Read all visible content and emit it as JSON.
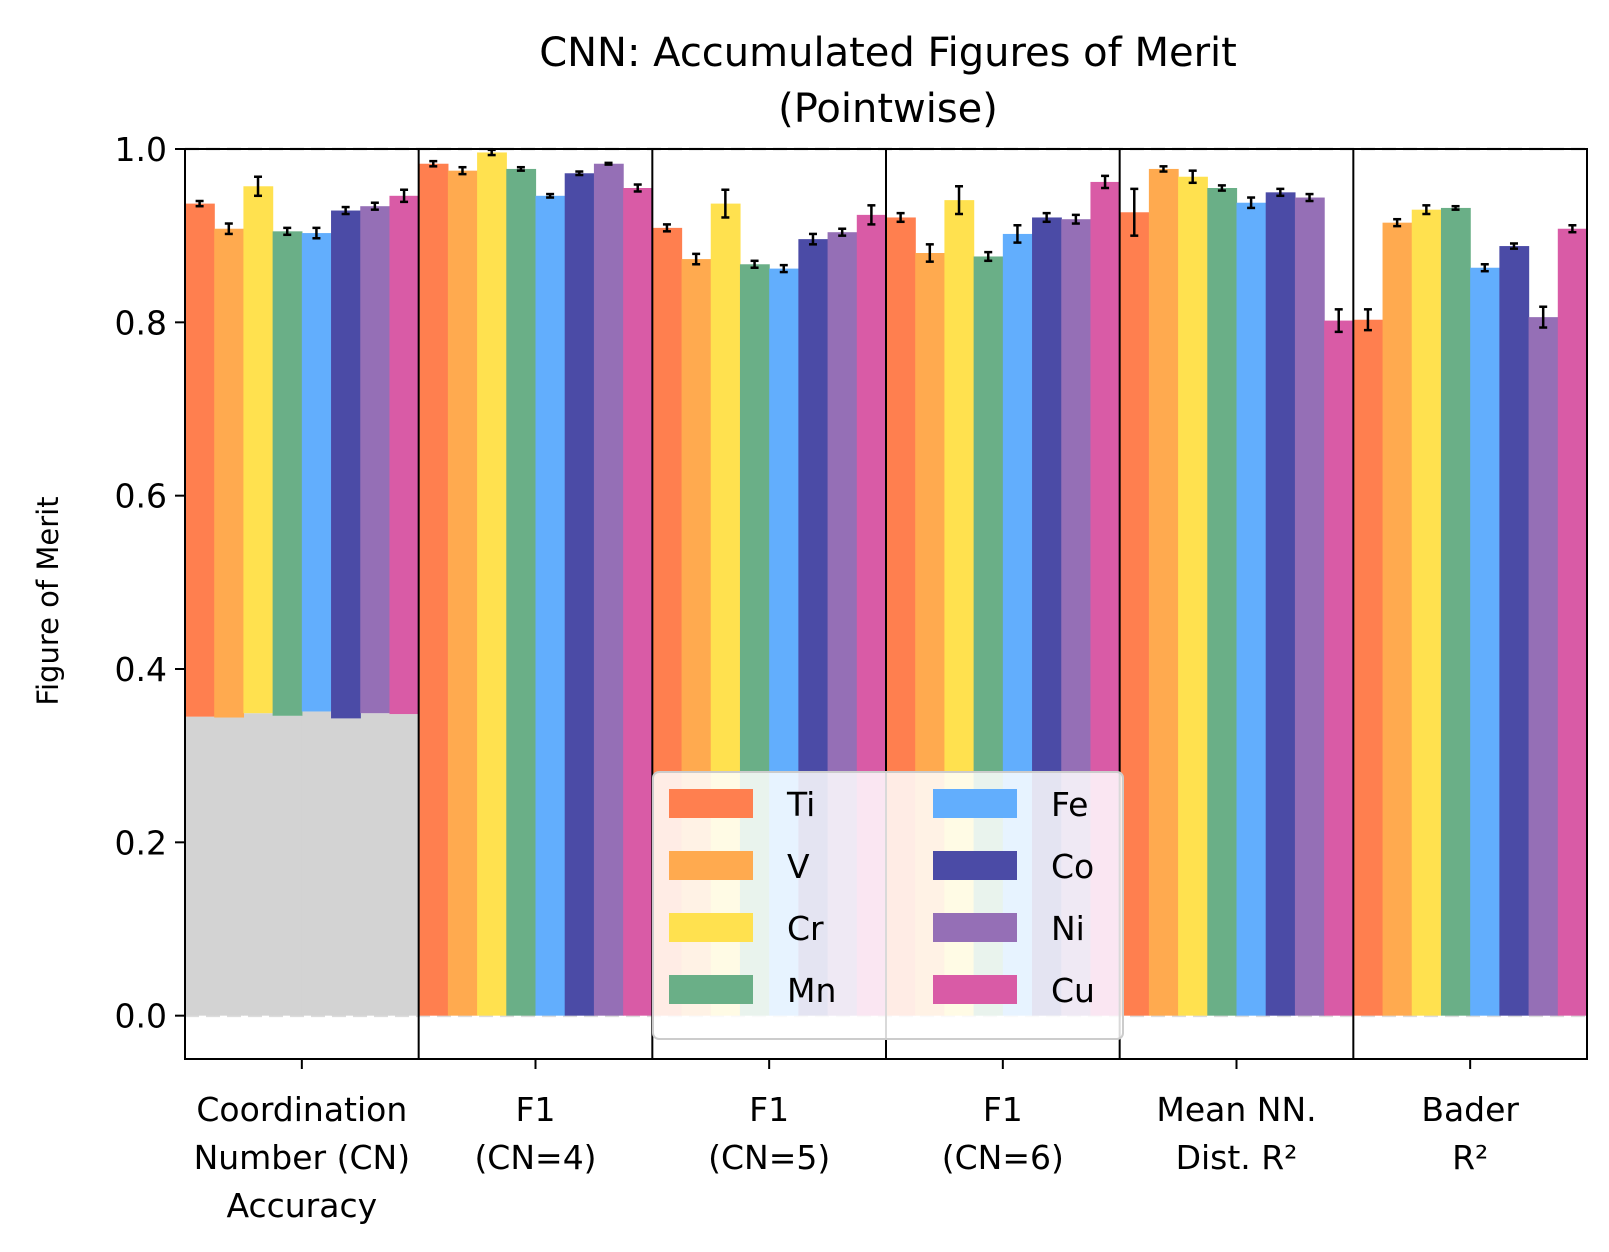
{
  "chart_data": {
    "type": "bar",
    "title": [
      "CNN: Accumulated Figures of Merit",
      "(Pointwise)"
    ],
    "ylabel": "Figure of Merit",
    "ylim": [
      -0.05,
      1.0
    ],
    "yticks": [
      "0.0",
      "0.2",
      "0.4",
      "0.6",
      "0.8",
      "1.0"
    ],
    "ytick_values": [
      0.0,
      0.2,
      0.4,
      0.6,
      0.8,
      1.0
    ],
    "grid": "horizontal dashed",
    "legend_position": "lower center",
    "categories": [
      [
        "Coordination",
        "Number (CN)",
        "Accuracy"
      ],
      [
        "F1",
        "(CN=4)"
      ],
      [
        "F1",
        "(CN=5)"
      ],
      [
        "F1",
        "(CN=6)"
      ],
      [
        "Mean NN.",
        "Dist. R²"
      ],
      [
        "Bader",
        "R²"
      ]
    ],
    "series": [
      {
        "name": "Ti",
        "color": "#ff7f4f",
        "values": [
          0.937,
          0.983,
          0.909,
          0.921,
          0.927,
          0.803
        ],
        "errors": [
          0.003,
          0.003,
          0.004,
          0.005,
          0.027,
          0.012
        ]
      },
      {
        "name": "V",
        "color": "#ffaa4f",
        "values": [
          0.908,
          0.975,
          0.873,
          0.88,
          0.977,
          0.915
        ],
        "errors": [
          0.006,
          0.004,
          0.006,
          0.01,
          0.003,
          0.004
        ]
      },
      {
        "name": "Cr",
        "color": "#ffe14f",
        "values": [
          0.957,
          0.996,
          0.937,
          0.941,
          0.968,
          0.93
        ],
        "errors": [
          0.011,
          0.003,
          0.016,
          0.016,
          0.007,
          0.005
        ]
      },
      {
        "name": "Mn",
        "color": "#6aaf87",
        "values": [
          0.905,
          0.977,
          0.867,
          0.876,
          0.955,
          0.932
        ],
        "errors": [
          0.004,
          0.002,
          0.004,
          0.005,
          0.003,
          0.002
        ]
      },
      {
        "name": "Fe",
        "color": "#62aefd",
        "values": [
          0.903,
          0.946,
          0.862,
          0.902,
          0.938,
          0.863
        ],
        "errors": [
          0.006,
          0.002,
          0.004,
          0.01,
          0.006,
          0.004
        ]
      },
      {
        "name": "Co",
        "color": "#4b4ba6",
        "values": [
          0.929,
          0.972,
          0.896,
          0.921,
          0.95,
          0.888
        ],
        "errors": [
          0.004,
          0.002,
          0.006,
          0.005,
          0.004,
          0.003
        ]
      },
      {
        "name": "Ni",
        "color": "#956fb6",
        "values": [
          0.934,
          0.983,
          0.904,
          0.919,
          0.944,
          0.806
        ],
        "errors": [
          0.004,
          0.001,
          0.004,
          0.005,
          0.004,
          0.012
        ]
      },
      {
        "name": "Cu",
        "color": "#d95ba6",
        "values": [
          0.946,
          0.955,
          0.924,
          0.962,
          0.802,
          0.908
        ],
        "errors": [
          0.007,
          0.004,
          0.011,
          0.007,
          0.013,
          0.004
        ]
      }
    ],
    "baseline": {
      "category_index": 0,
      "color": "#d3d3d3",
      "values": [
        0.345,
        0.344,
        0.349,
        0.346,
        0.351,
        0.343,
        0.349,
        0.348
      ]
    }
  }
}
